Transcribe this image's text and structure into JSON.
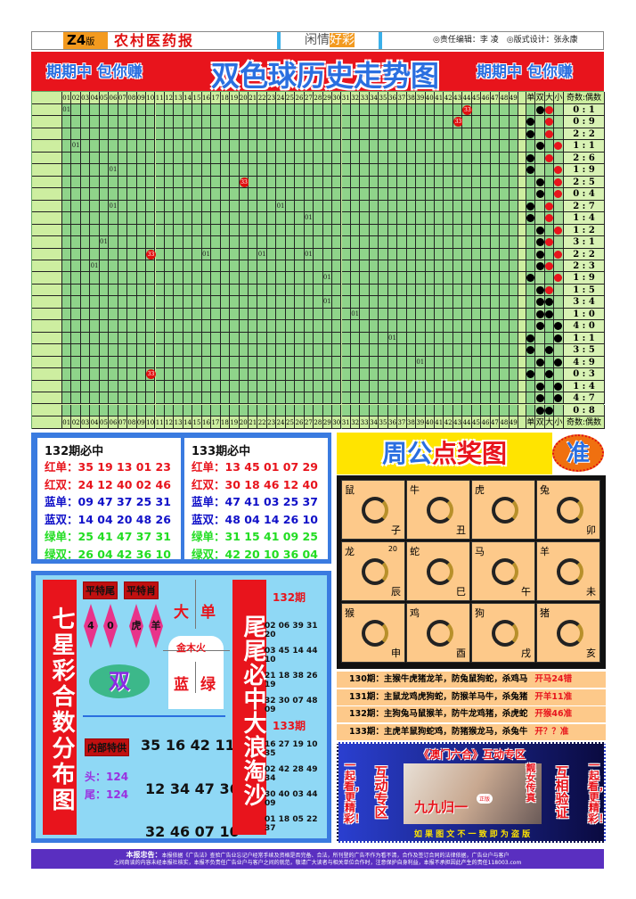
{
  "header": {
    "edition": "Z4",
    "edition_suffix": "版",
    "paper": "农村医药报",
    "column_a": "闲情",
    "column_b": "好彩",
    "credits": "◎责任编辑：李 凌　◎版式设计：张永康"
  },
  "banner": {
    "slogan": "期期中 包你赚",
    "title": "双色球历史走势图"
  },
  "grid": {
    "stat_headers": [
      "单",
      "双",
      "大",
      "小",
      "奇数:偶数"
    ],
    "marks": [
      {
        "row": 1,
        "col": 1,
        "text": "01",
        "type": "plain"
      },
      {
        "row": 1,
        "col": 44,
        "text": "33",
        "type": "red"
      },
      {
        "row": 2,
        "col": 43,
        "text": "33",
        "type": "red"
      },
      {
        "row": 4,
        "col": 2,
        "text": "01",
        "type": "plain"
      },
      {
        "row": 6,
        "col": 6,
        "text": "01",
        "type": "plain"
      },
      {
        "row": 7,
        "col": 20,
        "text": "33",
        "type": "red"
      },
      {
        "row": 9,
        "col": 6,
        "text": "01",
        "type": "plain"
      },
      {
        "row": 9,
        "col": 24,
        "text": "01",
        "type": "plain"
      },
      {
        "row": 10,
        "col": 27,
        "text": "01",
        "type": "plain"
      },
      {
        "row": 12,
        "col": 5,
        "text": "01",
        "type": "plain"
      },
      {
        "row": 13,
        "col": 10,
        "text": "33",
        "type": "red"
      },
      {
        "row": 13,
        "col": 16,
        "text": "01",
        "type": "plain"
      },
      {
        "row": 13,
        "col": 22,
        "text": "01",
        "type": "plain"
      },
      {
        "row": 13,
        "col": 27,
        "text": "01",
        "type": "plain"
      },
      {
        "row": 14,
        "col": 4,
        "text": "01",
        "type": "plain"
      },
      {
        "row": 15,
        "col": 29,
        "text": "01",
        "type": "plain"
      },
      {
        "row": 17,
        "col": 29,
        "text": "01",
        "type": "plain"
      },
      {
        "row": 18,
        "col": 32,
        "text": "01",
        "type": "plain"
      },
      {
        "row": 20,
        "col": 36,
        "text": "01",
        "type": "plain"
      },
      {
        "row": 22,
        "col": 39,
        "text": "01",
        "type": "plain"
      },
      {
        "row": 23,
        "col": 10,
        "text": "33",
        "type": "red"
      }
    ],
    "rows": [
      {
        "oe": "双",
        "bs": "大",
        "c": "#e8141c",
        "ratio": "0 : 1"
      },
      {
        "oe": "单",
        "bs": "大",
        "c": "#e8141c",
        "ratio": "0 : 9"
      },
      {
        "oe": "单",
        "bs": "大",
        "c": "#e8141c",
        "ratio": "2 : 2"
      },
      {
        "oe": "双",
        "bs": "小",
        "c": "#e8141c",
        "ratio": "1 : 1"
      },
      {
        "oe": "单",
        "bs": "大",
        "c": "#e8141c",
        "ratio": "2 : 6"
      },
      {
        "oe": "单",
        "bs": "小",
        "c": "#e8141c",
        "ratio": "1 : 9"
      },
      {
        "oe": "双",
        "bs": "小",
        "c": "#e8141c",
        "ratio": "2 : 5"
      },
      {
        "oe": "双",
        "bs": "小",
        "c": "#e8141c",
        "ratio": "0 : 4"
      },
      {
        "oe": "单",
        "bs": "大",
        "c": "#e8141c",
        "ratio": "2 : 7"
      },
      {
        "oe": "单",
        "bs": "大",
        "c": "#e8141c",
        "ratio": "1 : 4"
      },
      {
        "oe": "双",
        "bs": "小",
        "c": "#e8141c",
        "ratio": "1 : 2"
      },
      {
        "oe": "双",
        "bs": "大",
        "c": "#e8141c",
        "ratio": "3 : 1"
      },
      {
        "oe": "双",
        "bs": "小",
        "c": "#e8141c",
        "ratio": "2 : 2"
      },
      {
        "oe": "双",
        "bs": "大",
        "c": "#e8141c",
        "ratio": "2 : 3"
      },
      {
        "oe": "单",
        "bs": "小",
        "c": "#e8141c",
        "ratio": "1 : 9"
      },
      {
        "oe": "双",
        "bs": "大",
        "c": "#e8141c",
        "ratio": "1 : 5"
      },
      {
        "oe": "双",
        "bs": "大",
        "c": "#000000",
        "ratio": "3 : 4"
      },
      {
        "oe": "双",
        "bs": "大",
        "c": "#000000",
        "ratio": "1 : 0"
      },
      {
        "oe": "双",
        "bs": "小",
        "c": "#000000",
        "ratio": "4 : 0"
      },
      {
        "oe": "单",
        "bs": "小",
        "c": "#000000",
        "ratio": "1 : 1"
      },
      {
        "oe": "单",
        "bs": "大",
        "c": "#000000",
        "ratio": "3 : 5"
      },
      {
        "oe": "双",
        "bs": "小",
        "c": "#000000",
        "ratio": "4 : 9"
      },
      {
        "oe": "单",
        "bs": "大",
        "c": "#000000",
        "ratio": "0 : 3"
      },
      {
        "oe": "双",
        "bs": "小",
        "c": "#000000",
        "ratio": "1 : 4"
      },
      {
        "oe": "双",
        "bs": "小",
        "c": "#000000",
        "ratio": "4 : 7"
      },
      {
        "oe": "双",
        "bs": "大",
        "c": "#000000",
        "ratio": "0 : 8"
      }
    ]
  },
  "picks": [
    {
      "title": "132期必中",
      "lines": [
        [
          "红单：",
          "35 19 13 01 23",
          "#e8141c"
        ],
        [
          "红双：",
          "24 12 40 02 46",
          "#e8141c"
        ],
        [
          "蓝单：",
          "09 47 37 25 31",
          "#1010c8"
        ],
        [
          "蓝双：",
          "14 04 20 48 26",
          "#1010c8"
        ],
        [
          "绿单：",
          "25 41 47 37 31",
          "#22dd22"
        ],
        [
          "绿双：",
          "26 04 42 36 10",
          "#22dd22"
        ]
      ]
    },
    {
      "title": "133期必中",
      "lines": [
        [
          "红单：",
          "13 45 01 07 29",
          "#e8141c"
        ],
        [
          "红双：",
          "30 18 46 12 40",
          "#e8141c"
        ],
        [
          "蓝单：",
          "47 41 03 25 37",
          "#1010c8"
        ],
        [
          "蓝双：",
          "48 04 14 26 10",
          "#1010c8"
        ],
        [
          "绿单：",
          "31 15 41 09 25",
          "#22dd22"
        ],
        [
          "绿双：",
          "42 20 10 36 04",
          "#22dd22"
        ]
      ]
    }
  ],
  "seven": {
    "title": "七星彩合数分布图",
    "tag_tail": "平特尾",
    "tag_zodiac": "平特肖",
    "tail_nums": [
      "4",
      "0"
    ],
    "zodiacs": [
      "虎",
      "羊"
    ],
    "big": "大",
    "odd": "单",
    "elements": "金木火",
    "blue": "蓝",
    "green": "绿",
    "even_badge": "双",
    "inside_tag": "内部特供",
    "inside_nums": "35 16 42 11",
    "head": "头：124",
    "tail": "尾：124",
    "nums2": "12 34 47 36",
    "nums3": "32 46 07 10",
    "right_title": "尾尾必中大浪淘沙",
    "p132": "132期",
    "p132_lines": [
      "02 06 39 31 20",
      "03 45 14 44 10",
      "21 18 38 26 19",
      "32 30 07 48 09"
    ],
    "p133": "133期",
    "p133_lines": [
      "16 27 19 10 35",
      "02 42 28 49 34",
      "30 40 03 44 09",
      "01 18 05 22 37"
    ]
  },
  "zodiac": {
    "title_a": "周公",
    "title_b": "点奖图",
    "badge": "准",
    "cells": [
      {
        "a": "鼠",
        "b": "子"
      },
      {
        "a": "牛",
        "b": "丑"
      },
      {
        "a": "虎",
        "b": ""
      },
      {
        "a": "兔",
        "b": "卯"
      },
      {
        "a": "龙",
        "b": "辰",
        "n": "20"
      },
      {
        "a": "蛇",
        "b": "巳"
      },
      {
        "a": "马",
        "b": "午"
      },
      {
        "a": "羊",
        "b": "未"
      },
      {
        "a": "猴",
        "b": "申"
      },
      {
        "a": "鸡",
        "b": "酉"
      },
      {
        "a": "狗",
        "b": "戌"
      },
      {
        "a": "猪",
        "b": "亥"
      }
    ],
    "forecast": [
      {
        "t": "130期：主猴牛虎猪龙羊，防兔鼠狗蛇，杀鸡马",
        "o": "开马24错"
      },
      {
        "t": "131期：主鼠龙鸡虎狗蛇，防猴羊马牛，杀兔猪",
        "o": "开羊11准"
      },
      {
        "t": "132期：主狗兔马鼠猴羊，防牛龙鸡猪，杀虎蛇",
        "o": "开猴46准"
      },
      {
        "t": "133期：主虎羊鼠狗蛇鸡，防猪猴龙马，杀兔牛",
        "o": "开？？准"
      }
    ]
  },
  "ad": {
    "title": "《澳门六合》互动专区",
    "left": "一起看，更精彩！",
    "left2": "互动专区",
    "right2": "互相验证",
    "right": "一起看，更精彩！",
    "beauty": "靓女传真",
    "brand": "九九归一",
    "badge": "正版",
    "warning": "如 果 图 文 不 一 致 即 为 盗 版"
  },
  "footer": {
    "label": "本报忠告：",
    "line1": "本报依据《广告法》查验广告业忘记户经常手续及资格是否完备、合法，所刊登的广告不作为看不清，合作及签订合同的法律依据，广告业户与客户",
    "line2": "之间商谈的内容未经本报社核实，本报不负责任广告业户与客户之间的就范，敬请广大读者与相关单位合作时，注意保护自身利益，本报不承担因此产生的责任118003.com"
  }
}
